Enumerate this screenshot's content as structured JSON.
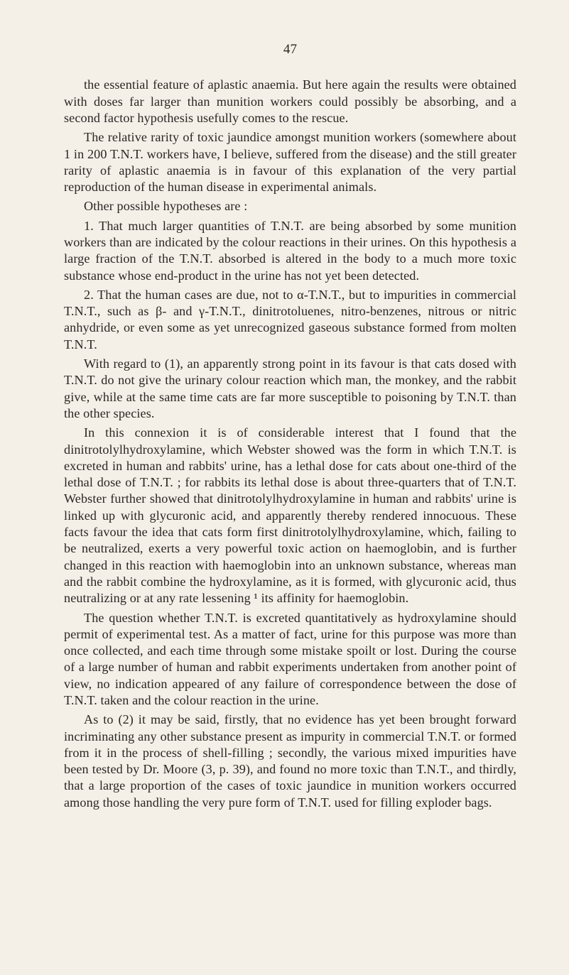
{
  "page_number": "47",
  "paragraphs": {
    "p1": "the essential feature of aplastic anaemia. But here again the results were obtained with doses far larger than munition workers could possibly be absorbing, and a second factor hypothesis usefully comes to the rescue.",
    "p2": "The relative rarity of toxic jaundice amongst munition workers (somewhere about 1 in 200 T.N.T. workers have, I believe, suffered from the disease) and the still greater rarity of aplastic anaemia is in favour of this explanation of the very partial reproduction of the human disease in experimental animals.",
    "p3": "Other possible hypotheses are :",
    "p4": "1. That much larger quantities of T.N.T. are being absorbed by some munition workers than are indicated by the colour reactions in their urines. On this hypothesis a large fraction of the T.N.T. absorbed is altered in the body to a much more toxic substance whose end-product in the urine has not yet been detected.",
    "p5": "2. That the human cases are due, not to α-T.N.T., but to impuri­ties in commercial T.N.T., such as β- and γ-T.N.T., dinitro­toluenes, nitro-benzenes, nitrous or nitric anhydride, or even some as yet unrecognized gaseous substance formed from molten T.N.T.",
    "p6": "With regard to (1), an apparently strong point in its favour is that cats dosed with T.N.T. do not give the urinary colour reaction which man, the monkey, and the rabbit give, while at the same time cats are far more susceptible to poisoning by T.N.T. than the other species.",
    "p7": "In this connexion it is of considerable interest that I found that the dinitrotolylhydroxylamine, which Webster showed was the form in which T.N.T. is excreted in human and rabbits' urine, has a lethal dose for cats about one-third of the lethal dose of T.N.T. ; for rabbits its lethal dose is about three-quarters that of T.N.T. Webster further showed that dinitrotolylhydroxylamine in human and rabbits' urine is linked up with glycuronic acid, and apparently thereby rendered innocuous. These facts favour the idea that cats form first dinitrotolylhydroxylamine, which, failing to be neutral­ized, exerts a very powerful toxic action on haemoglobin, and is further changed in this reaction with haemoglobin into an unknown substance, whereas man and the rabbit combine the hydroxylamine, as it is formed, with glycuronic acid, thus neutralizing or at any rate lessening ¹ its affinity for haemoglobin.",
    "p8": "The question whether T.N.T. is excreted quantitatively as hydroxyl­amine should permit of experimental test. As a matter of fact, urine for this purpose was more than once collected, and each time through some mistake spoilt or lost. During the course of a large number of human and rabbit experiments undertaken from another point of view, no indication appeared of any failure of correspondence between the dose of T.N.T. taken and the colour reaction in the urine.",
    "p9": "As to (2) it may be said, firstly, that no evidence has yet been brought forward incriminating any other substance present as impurity in commercial T.N.T. or formed from it in the process of shell-filling ; secondly, the various mixed impurities have been tested by Dr. Moore (3, p. 39), and found no more toxic than T.N.T., and thirdly, that a large proportion of the cases of toxic jaundice in munition workers occurred among those handling the very pure form of T.N.T. used for filling exploder bags."
  }
}
